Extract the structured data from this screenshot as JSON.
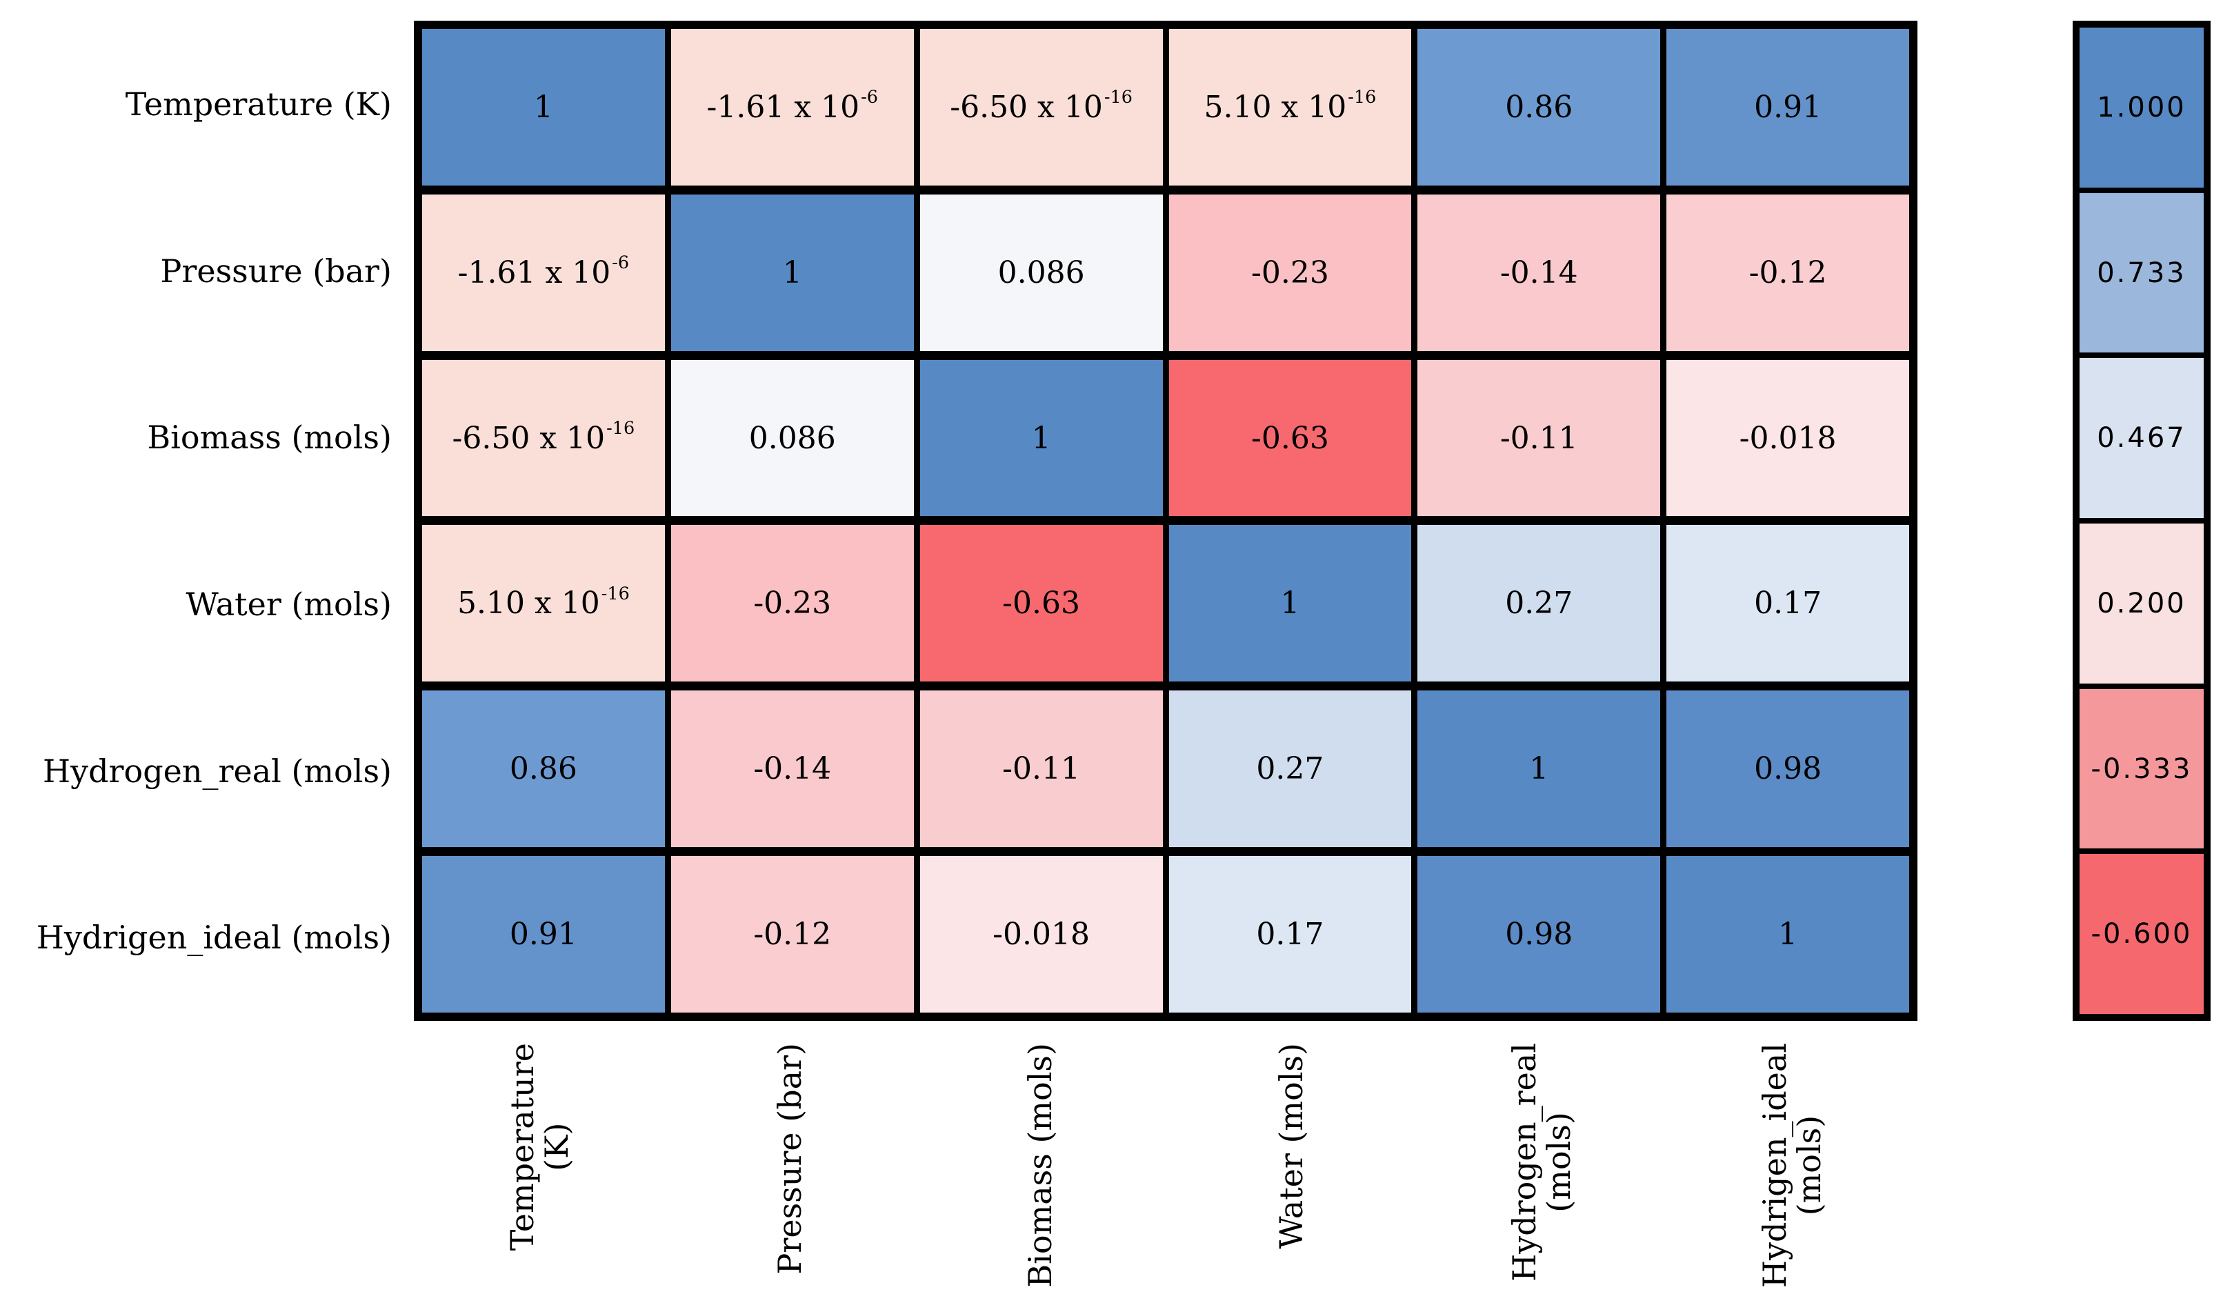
{
  "page": {
    "background": "#ffffff"
  },
  "heatmap": {
    "grid_color": "#000000",
    "row_labels": [
      "Temperature (K)",
      "Pressure (bar)",
      "Biomass (mols)",
      "Water (mols)",
      "Hydrogen_real (mols)",
      "Hydrigen_ideal (mols)"
    ],
    "col_labels_lines": [
      [
        "Temperature",
        "(K)"
      ],
      [
        "Pressure (bar)"
      ],
      [
        "Biomass (mols)"
      ],
      [
        "Water (mols)"
      ],
      [
        "Hydrogen_real",
        "(mols)"
      ],
      [
        "Hydrigen_ideal",
        "(mols)"
      ]
    ],
    "cells": [
      [
        {
          "text": "1",
          "bg": "#5789C4"
        },
        {
          "text": "-1.61 x 10",
          "sup": "-6",
          "bg": "#FADFD9"
        },
        {
          "text": "-6.50 x 10",
          "sup": "-16",
          "bg": "#FADFD9"
        },
        {
          "text": "5.10 x 10",
          "sup": "-16",
          "bg": "#FADFD9"
        },
        {
          "text": "0.86",
          "bg": "#6D9BD1"
        },
        {
          "text": "0.91",
          "bg": "#6492CB"
        }
      ],
      [
        {
          "text": "-1.61 x 10",
          "sup": "-6",
          "bg": "#FADFD9"
        },
        {
          "text": "1",
          "bg": "#5789C4"
        },
        {
          "text": "0.086",
          "bg": "#F4F6FA"
        },
        {
          "text": "-0.23",
          "bg": "#FBC0C4"
        },
        {
          "text": "-0.14",
          "bg": "#F9C9CD"
        },
        {
          "text": "-0.12",
          "bg": "#FACDD1"
        }
      ],
      [
        {
          "text": "-6.50 x 10",
          "sup": "-16",
          "bg": "#FADFD9"
        },
        {
          "text": "0.086",
          "bg": "#F4F6FA"
        },
        {
          "text": "1",
          "bg": "#5789C4"
        },
        {
          "text": "-0.63",
          "bg": "#F7696E"
        },
        {
          "text": "-0.11",
          "bg": "#F9CCD0"
        },
        {
          "text": "-0.018",
          "bg": "#FBE5E7"
        }
      ],
      [
        {
          "text": "5.10 x 10",
          "sup": "-16",
          "bg": "#FADFD9"
        },
        {
          "text": "-0.23",
          "bg": "#FBC0C4"
        },
        {
          "text": "-0.63",
          "bg": "#F7696E"
        },
        {
          "text": "1",
          "bg": "#5789C4"
        },
        {
          "text": "0.27",
          "bg": "#CFDDEF"
        },
        {
          "text": "0.17",
          "bg": "#DDE7F4"
        }
      ],
      [
        {
          "text": "0.86",
          "bg": "#6D9BD1"
        },
        {
          "text": "-0.14",
          "bg": "#F9C9CD"
        },
        {
          "text": "-0.11",
          "bg": "#F9CCD0"
        },
        {
          "text": "0.27",
          "bg": "#CFDDEF"
        },
        {
          "text": "1",
          "bg": "#5789C4"
        },
        {
          "text": "0.98",
          "bg": "#5C8CC7"
        }
      ],
      [
        {
          "text": "0.91",
          "bg": "#6492CB"
        },
        {
          "text": "-0.12",
          "bg": "#FACDD1"
        },
        {
          "text": "-0.018",
          "bg": "#FBE5E7"
        },
        {
          "text": "0.17",
          "bg": "#DDE7F4"
        },
        {
          "text": "0.98",
          "bg": "#5C8CC7"
        },
        {
          "text": "1",
          "bg": "#5789C4"
        }
      ]
    ]
  },
  "legend": {
    "entries": [
      {
        "label": "1.000",
        "color": "#5789C4"
      },
      {
        "label": "0.733",
        "color": "#9CB7DC"
      },
      {
        "label": "0.467",
        "color": "#D9E2F0"
      },
      {
        "label": "0.200",
        "color": "#F9E1E2"
      },
      {
        "label": "-0.333",
        "color": "#F4989B"
      },
      {
        "label": "-0.600",
        "color": "#F5696E"
      }
    ]
  },
  "chart_data": {
    "type": "heatmap",
    "title": "",
    "variables": [
      "Temperature (K)",
      "Pressure (bar)",
      "Biomass (mols)",
      "Water (mols)",
      "Hydrogen_real (mols)",
      "Hydrigen_ideal (mols)"
    ],
    "matrix": [
      [
        1,
        -1.61e-06,
        -6.5e-16,
        5.1e-16,
        0.86,
        0.91
      ],
      [
        -1.61e-06,
        1,
        0.086,
        -0.23,
        -0.14,
        -0.12
      ],
      [
        -6.5e-16,
        0.086,
        1,
        -0.63,
        -0.11,
        -0.018
      ],
      [
        5.1e-16,
        -0.23,
        -0.63,
        1,
        0.27,
        0.17
      ],
      [
        0.86,
        -0.14,
        -0.11,
        0.27,
        1,
        0.98
      ],
      [
        0.91,
        -0.12,
        -0.018,
        0.17,
        0.98,
        1
      ]
    ],
    "cell_display": [
      [
        "1",
        "-1.61 x 10^-6",
        "-6.50 x 10^-16",
        "5.10 x 10^-16",
        "0.86",
        "0.91"
      ],
      [
        "-1.61 x 10^-6",
        "1",
        "0.086",
        "-0.23",
        "-0.14",
        "-0.12"
      ],
      [
        "-6.50 x 10^-16",
        "0.086",
        "1",
        "-0.63",
        "-0.11",
        "-0.018"
      ],
      [
        "5.10 x 10^-16",
        "-0.23",
        "-0.63",
        "1",
        "0.27",
        "0.17"
      ],
      [
        "0.86",
        "-0.14",
        "-0.11",
        "0.27",
        "1",
        "0.98"
      ],
      [
        "0.91",
        "-0.12",
        "-0.018",
        "0.17",
        "0.98",
        "1"
      ]
    ],
    "legend_ticks": [
      "1.000",
      "0.733",
      "0.467",
      "0.200",
      "-0.333",
      "-0.600"
    ],
    "colorscale": {
      "positive": "#5789C4",
      "mid": "#FFFFFF",
      "negative": "#F5696E"
    },
    "legend_position": "right",
    "grid": true
  }
}
